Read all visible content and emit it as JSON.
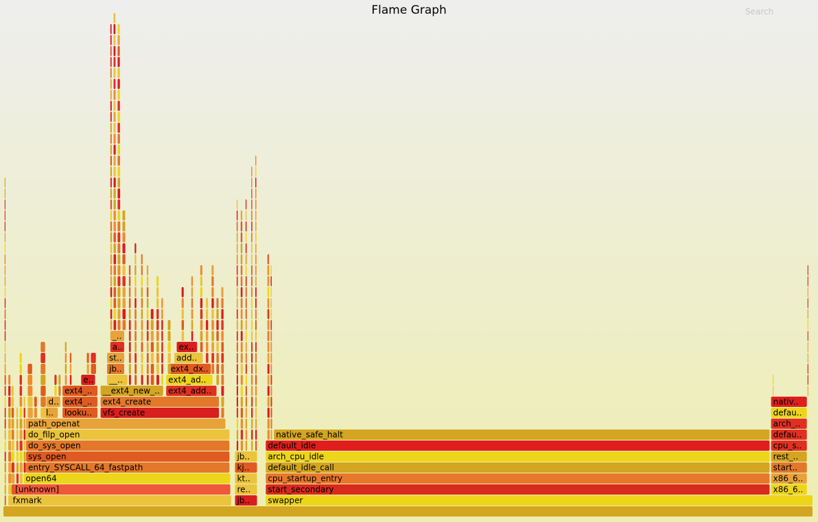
{
  "title": "Flame Graph",
  "search": {
    "label": "Search"
  },
  "chart_data": {
    "type": "flame",
    "title": "Flame Graph",
    "colors": [
      "#e05b22",
      "#e3782b",
      "#e7a33a",
      "#ebc33c",
      "#edd51a",
      "#e03022",
      "#d91e1e",
      "#f08a2d",
      "#d4a520"
    ],
    "frames": [
      {
        "name": "",
        "depth": 0,
        "start": 0.0,
        "width": 100.0,
        "color": "#d4a520"
      },
      {
        "name": "fxmark",
        "depth": 1,
        "start": 0.9,
        "width": 27.3,
        "color": "#ebc33c"
      },
      {
        "name": "jb..",
        "depth": 1,
        "start": 28.6,
        "width": 2.8,
        "color": "#d91e1e"
      },
      {
        "name": "swapper",
        "depth": 1,
        "start": 32.4,
        "width": 67.6,
        "color": "#edd51a"
      },
      {
        "name": "[unknown]",
        "depth": 2,
        "start": 1.2,
        "width": 26.9,
        "color": "#f0583a"
      },
      {
        "name": "re..",
        "depth": 2,
        "start": 28.6,
        "width": 2.8,
        "color": "#ebc33c"
      },
      {
        "name": "start_secondary",
        "depth": 2,
        "start": 32.4,
        "width": 62.3,
        "color": "#d92a1e"
      },
      {
        "name": "x86_6..",
        "depth": 2,
        "start": 94.8,
        "width": 4.5,
        "color": "#edd51a"
      },
      {
        "name": "open64",
        "depth": 3,
        "start": 2.5,
        "width": 25.6,
        "color": "#edd51a"
      },
      {
        "name": "kt..",
        "depth": 3,
        "start": 28.6,
        "width": 2.8,
        "color": "#ebc33c"
      },
      {
        "name": "cpu_startup_entry",
        "depth": 3,
        "start": 32.4,
        "width": 62.3,
        "color": "#e8782b"
      },
      {
        "name": "x86_6..",
        "depth": 3,
        "start": 94.8,
        "width": 4.5,
        "color": "#e7a33a"
      },
      {
        "name": "entry_SYSCALL_64_fastpath",
        "depth": 4,
        "start": 2.8,
        "width": 25.2,
        "color": "#e3782b"
      },
      {
        "name": "kj..",
        "depth": 4,
        "start": 28.6,
        "width": 2.8,
        "color": "#e05b22"
      },
      {
        "name": "default_idle_call",
        "depth": 4,
        "start": 32.4,
        "width": 62.3,
        "color": "#d4a520"
      },
      {
        "name": "start..",
        "depth": 4,
        "start": 94.8,
        "width": 4.5,
        "color": "#e3782b"
      },
      {
        "name": "sys_open",
        "depth": 5,
        "start": 2.8,
        "width": 25.2,
        "color": "#e05b22"
      },
      {
        "name": "jb..",
        "depth": 5,
        "start": 28.6,
        "width": 2.8,
        "color": "#ebc33c"
      },
      {
        "name": "arch_cpu_idle",
        "depth": 5,
        "start": 32.4,
        "width": 62.3,
        "color": "#edd51a"
      },
      {
        "name": "rest_..",
        "depth": 5,
        "start": 94.8,
        "width": 4.5,
        "color": "#d4a520"
      },
      {
        "name": "do_sys_open",
        "depth": 6,
        "start": 2.8,
        "width": 25.2,
        "color": "#e3782b"
      },
      {
        "name": "default_idle",
        "depth": 6,
        "start": 32.4,
        "width": 62.3,
        "color": "#e01e1e"
      },
      {
        "name": "cpu_s..",
        "depth": 6,
        "start": 94.8,
        "width": 4.5,
        "color": "#e03022"
      },
      {
        "name": "do_filp_open",
        "depth": 7,
        "start": 2.8,
        "width": 25.2,
        "color": "#ebc33c"
      },
      {
        "name": "native_safe_halt",
        "depth": 7,
        "start": 33.4,
        "width": 61.3,
        "color": "#d4a520"
      },
      {
        "name": "defau..",
        "depth": 7,
        "start": 94.8,
        "width": 4.5,
        "color": "#e03022"
      },
      {
        "name": "path_openat",
        "depth": 8,
        "start": 2.8,
        "width": 24.7,
        "color": "#e7a33a"
      },
      {
        "name": "arch_..",
        "depth": 8,
        "start": 94.8,
        "width": 4.5,
        "color": "#e03022"
      },
      {
        "name": "l..",
        "depth": 9,
        "start": 5.0,
        "width": 1.8,
        "color": "#e7a33a"
      },
      {
        "name": "looku..",
        "depth": 9,
        "start": 7.3,
        "width": 4.4,
        "color": "#e05b22"
      },
      {
        "name": "vfs_create",
        "depth": 9,
        "start": 12.0,
        "width": 14.7,
        "color": "#d91e1e"
      },
      {
        "name": "defau..",
        "depth": 9,
        "start": 94.8,
        "width": 4.5,
        "color": "#edd51a"
      },
      {
        "name": "d..",
        "depth": 10,
        "start": 5.3,
        "width": 1.8,
        "color": "#e7a33a"
      },
      {
        "name": "ext4_..",
        "depth": 10,
        "start": 7.3,
        "width": 4.4,
        "color": "#e05b22"
      },
      {
        "name": "ext4_create",
        "depth": 10,
        "start": 12.0,
        "width": 14.7,
        "color": "#e3782b"
      },
      {
        "name": "nativ..",
        "depth": 10,
        "start": 94.8,
        "width": 4.5,
        "color": "#e01e1e"
      },
      {
        "name": "ext4_..",
        "depth": 11,
        "start": 7.3,
        "width": 4.4,
        "color": "#e05b22"
      },
      {
        "name": "__ext4_new_..",
        "depth": 11,
        "start": 12.0,
        "width": 7.8,
        "color": "#d4a520"
      },
      {
        "name": "ext4_add..",
        "depth": 11,
        "start": 20.1,
        "width": 6.3,
        "color": "#e03022"
      },
      {
        "name": "e..",
        "depth": 12,
        "start": 9.6,
        "width": 1.8,
        "color": "#d91e1e"
      },
      {
        "name": "__..",
        "depth": 12,
        "start": 12.8,
        "width": 2.6,
        "color": "#ebc33c"
      },
      {
        "name": "ext4_ad..",
        "depth": 12,
        "start": 20.1,
        "width": 5.8,
        "color": "#edd51a"
      },
      {
        "name": "jb..",
        "depth": 13,
        "start": 12.8,
        "width": 2.2,
        "color": "#e3782b"
      },
      {
        "name": "ext4_dx..",
        "depth": 13,
        "start": 20.4,
        "width": 5.3,
        "color": "#e05b22"
      },
      {
        "name": "st..",
        "depth": 14,
        "start": 12.8,
        "width": 2.2,
        "color": "#e7a33a"
      },
      {
        "name": "add..",
        "depth": 14,
        "start": 21.1,
        "width": 3.6,
        "color": "#ebc33c"
      },
      {
        "name": "a..",
        "depth": 15,
        "start": 13.2,
        "width": 1.8,
        "color": "#e03022"
      },
      {
        "name": "ex..",
        "depth": 15,
        "start": 21.4,
        "width": 2.6,
        "color": "#d91e1e"
      },
      {
        "name": "_..",
        "depth": 16,
        "start": 13.2,
        "width": 1.8,
        "color": "#e7a33a"
      }
    ]
  }
}
